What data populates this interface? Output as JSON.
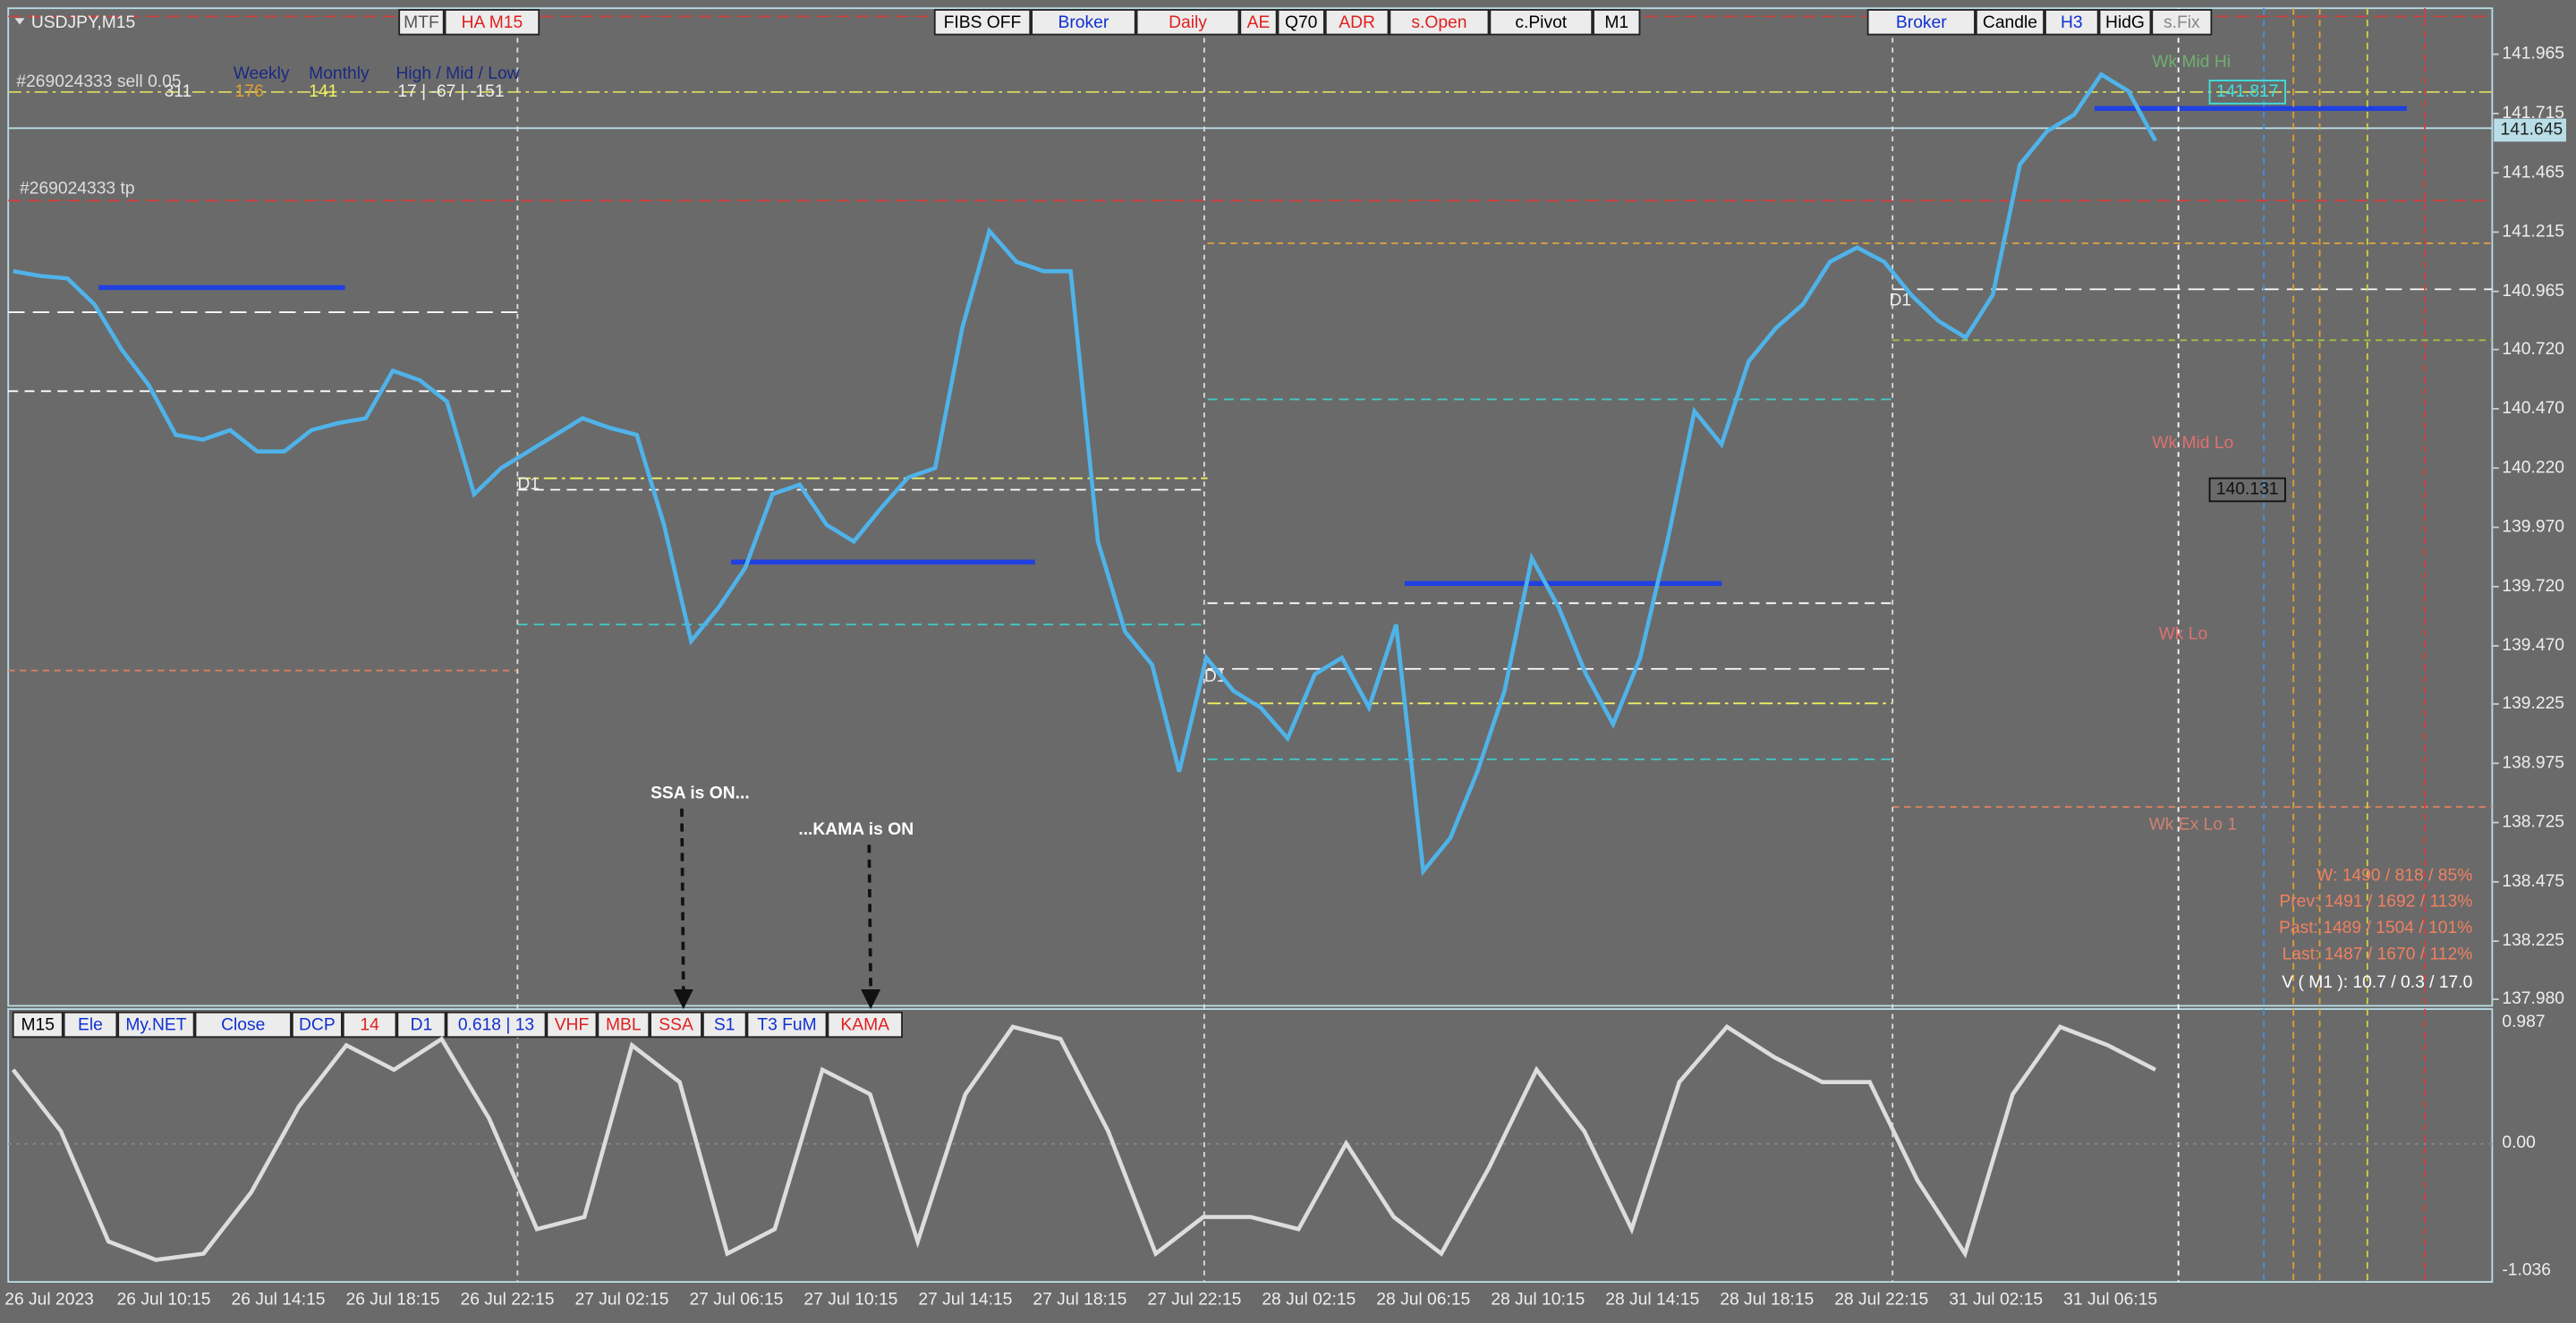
{
  "header": {
    "symbol": "USDJPY,M15",
    "order": "#269024333 sell 0.05",
    "tp": "#269024333 tp",
    "stat_titles": [
      "Weekly",
      "Monthly",
      "High / Mid / Low"
    ],
    "stat_values": [
      "311",
      "176",
      "141",
      "17 | -67 | -151"
    ]
  },
  "top_buttons": [
    {
      "label": "MTF",
      "color": "#555555"
    },
    {
      "label": "HA M15",
      "color": "#e02020"
    },
    {
      "label": "FIBS OFF",
      "color": "#000000"
    },
    {
      "label": "Broker",
      "color": "#1030d0"
    },
    {
      "label": "Daily",
      "color": "#e02020"
    },
    {
      "label": "AE",
      "color": "#e02020"
    },
    {
      "label": "Q70",
      "color": "#000000"
    },
    {
      "label": "ADR",
      "color": "#e02020"
    },
    {
      "label": "s.Open",
      "color": "#e02020"
    },
    {
      "label": "c.Pivot",
      "color": "#000000"
    },
    {
      "label": "M1",
      "color": "#000000"
    },
    {
      "label": "Broker",
      "color": "#1030d0"
    },
    {
      "label": "Candle",
      "color": "#000000"
    },
    {
      "label": "H3",
      "color": "#1030d0"
    },
    {
      "label": "HidG",
      "color": "#000000"
    },
    {
      "label": "s.Fix",
      "color": "#888888"
    }
  ],
  "bottom_buttons": [
    {
      "label": "M15",
      "color": "#000000"
    },
    {
      "label": "Ele",
      "color": "#1030d0"
    },
    {
      "label": "My.NET",
      "color": "#1030d0"
    },
    {
      "label": "Close",
      "color": "#1030d0"
    },
    {
      "label": "DCP",
      "color": "#1030d0"
    },
    {
      "label": "14",
      "color": "#e02020"
    },
    {
      "label": "D1",
      "color": "#1030d0"
    },
    {
      "label": "0.618 | 13",
      "color": "#1030d0"
    },
    {
      "label": "VHF",
      "color": "#e02020"
    },
    {
      "label": "MBL",
      "color": "#e02020"
    },
    {
      "label": "SSA",
      "color": "#e02020"
    },
    {
      "label": "S1",
      "color": "#1030d0"
    },
    {
      "label": "T3 FuM",
      "color": "#1030d0"
    },
    {
      "label": "KAMA",
      "color": "#e02020"
    }
  ],
  "price_axis": [
    "141.965",
    "141.715",
    "141.465",
    "141.215",
    "140.965",
    "140.720",
    "140.470",
    "140.220",
    "139.970",
    "139.720",
    "139.470",
    "139.225",
    "138.975",
    "138.725",
    "138.475",
    "138.225",
    "137.980"
  ],
  "current_price": "141.645",
  "osc_axis": [
    "0.987",
    "0.00",
    "-1.036"
  ],
  "dates": [
    "26 Jul 2023",
    "26 Jul 10:15",
    "26 Jul 14:15",
    "26 Jul 18:15",
    "26 Jul 22:15",
    "27 Jul 02:15",
    "27 Jul 06:15",
    "27 Jul 10:15",
    "27 Jul 14:15",
    "27 Jul 18:15",
    "27 Jul 22:15",
    "28 Jul 02:15",
    "28 Jul 06:15",
    "28 Jul 10:15",
    "28 Jul 14:15",
    "28 Jul 18:15",
    "28 Jul 22:15",
    "31 Jul 02:15",
    "31 Jul 06:15"
  ],
  "levels": [
    "Wk Mid Hi",
    "141.817",
    "Wk Mid Lo",
    "140.131",
    "Wk Lo",
    "Wk Ex Lo 1"
  ],
  "d1_labels": [
    "D1",
    "D1",
    "D1"
  ],
  "annotations": [
    "SSA is ON...",
    "...KAMA is ON"
  ],
  "stats": [
    "W: 1490 / 818 / 85%",
    "Prev: 1491 / 1692 / 113%",
    "Past: 1489 / 1504 / 101%",
    "Last: 1487 / 1670 / 112%"
  ],
  "volatility": "V ( M1 ): 10.7 / 0.3 / 17.0",
  "price": {
    "color": "#4fb3ea",
    "values": [
      141.05,
      141.03,
      141.02,
      140.91,
      140.72,
      140.57,
      140.36,
      140.34,
      140.38,
      140.29,
      140.29,
      140.38,
      140.41,
      140.43,
      140.63,
      140.59,
      140.5,
      140.11,
      140.22,
      140.29,
      140.36,
      140.43,
      140.39,
      140.36,
      139.98,
      139.49,
      139.63,
      139.8,
      140.11,
      140.15,
      139.98,
      139.91,
      140.05,
      140.18,
      140.22,
      140.81,
      141.22,
      141.09,
      141.05,
      141.05,
      139.91,
      139.53,
      139.39,
      138.94,
      139.42,
      139.28,
      139.21,
      139.08,
      139.35,
      139.42,
      139.21,
      139.56,
      138.52,
      138.66,
      138.94,
      139.28,
      139.84,
      139.63,
      139.35,
      139.14,
      139.42,
      139.91,
      140.46,
      140.32,
      140.67,
      140.81,
      140.91,
      141.09,
      141.15,
      141.09,
      140.95,
      140.84,
      140.77,
      140.95,
      141.5,
      141.64,
      141.71,
      141.88,
      141.81,
      141.6
    ]
  },
  "oscillator": {
    "color": "#dddddd",
    "values": [
      0.6,
      0.1,
      -0.8,
      -0.95,
      -0.9,
      -0.4,
      0.3,
      0.8,
      0.6,
      0.85,
      0.2,
      -0.7,
      -0.6,
      0.8,
      0.5,
      -0.9,
      -0.7,
      0.6,
      0.4,
      -0.8,
      0.4,
      0.95,
      0.85,
      0.1,
      -0.9,
      -0.6,
      -0.6,
      -0.7,
      0.0,
      -0.6,
      -0.9,
      -0.2,
      0.6,
      0.1,
      -0.7,
      0.5,
      0.95,
      0.7,
      0.5,
      0.5,
      -0.3,
      -0.9,
      0.4,
      0.95,
      0.8,
      0.6
    ]
  }
}
